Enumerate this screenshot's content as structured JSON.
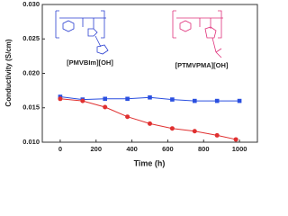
{
  "chart_data": {
    "type": "line",
    "x_label": "Time (h)",
    "y_label": "Conductivity (S/cm)",
    "xlim": [
      -100,
      1100
    ],
    "xticks": [
      0,
      200,
      400,
      600,
      800,
      1000
    ],
    "ylim": [
      0.01,
      0.03
    ],
    "yticks": [
      {
        "value": 0.01,
        "label": "0.010"
      },
      0.015,
      {
        "value": 0.02,
        "label": "0.020"
      },
      0.025,
      {
        "value": 0.03,
        "label": "0.030"
      }
    ],
    "annotations": [
      {
        "text": "[PMVBIm][OH]",
        "color": "#2a3fd0"
      },
      {
        "text": "[PTMVPMA][OH]",
        "color": "#e0307a"
      }
    ],
    "series": [
      {
        "color": "#2a4fe0",
        "marker": "square",
        "x": [
          0,
          125,
          250,
          375,
          500,
          625,
          750,
          875,
          1000
        ],
        "values": [
          0.0166,
          0.0162,
          0.0163,
          0.0163,
          0.0165,
          0.0162,
          0.016,
          0.016,
          0.016
        ]
      },
      {
        "color": "#e03030",
        "marker": "circle",
        "x": [
          0,
          125,
          250,
          375,
          500,
          625,
          750,
          875,
          980
        ],
        "values": [
          0.0163,
          0.016,
          0.0151,
          0.0137,
          0.0127,
          0.012,
          0.0116,
          0.011,
          0.0104
        ]
      }
    ]
  }
}
